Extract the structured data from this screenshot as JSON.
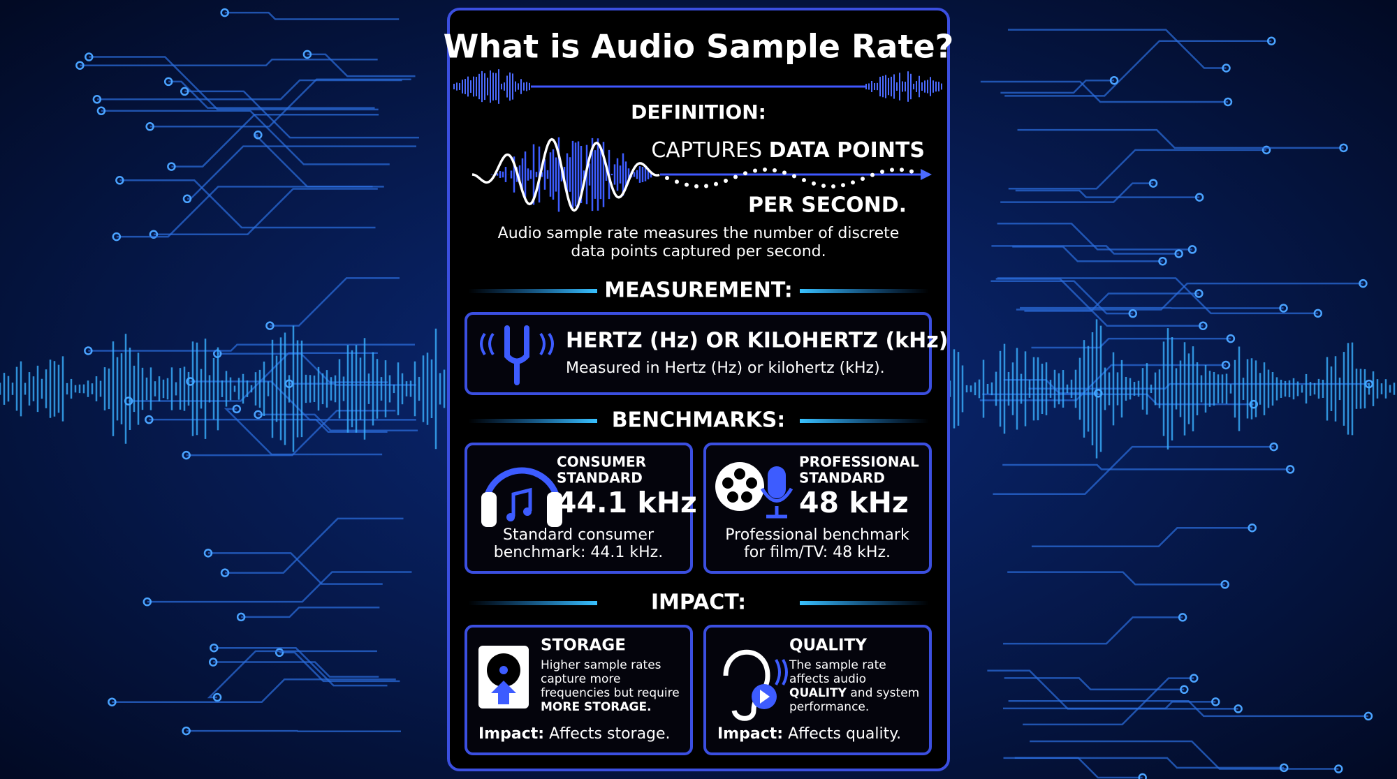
{
  "title": "What is Audio Sample Rate?",
  "definition": {
    "heading": "DEFINITION:",
    "caption_light": "CAPTURES",
    "caption_bold": "DATA POINTS",
    "caption_line2": "PER SECOND.",
    "description": [
      "Audio sample rate measures the number of discrete",
      "data points captured per second."
    ]
  },
  "measurement": {
    "heading": "MEASUREMENT:",
    "title": "HERTZ (Hz) OR KILOHERTZ (kHz)",
    "text": "Measured in Hertz (Hz) or kilohertz (kHz)."
  },
  "benchmarks": {
    "heading": "BENCHMARKS:",
    "cards": [
      {
        "label": [
          "CONSUMER",
          "STANDARD"
        ],
        "value": "44.1 kHz",
        "description": [
          "Standard consumer",
          "benchmark: 44.1 kHz."
        ]
      },
      {
        "label": [
          "PROFESSIONAL",
          "STANDARD"
        ],
        "value": "48 kHz",
        "description": [
          "Professional benchmark",
          "for film/TV: 48 kHz."
        ]
      }
    ]
  },
  "impact": {
    "heading": "IMPACT:",
    "cards": [
      {
        "title": "STORAGE",
        "body": [
          [
            {
              "text": "Higher sample rates",
              "bold": false
            }
          ],
          [
            {
              "text": "capture more",
              "bold": false
            }
          ],
          [
            {
              "text": "frequencies but require",
              "bold": false
            }
          ],
          [
            {
              "text": "MORE STORAGE.",
              "bold": true
            }
          ]
        ],
        "impact_label": "Impact:",
        "impact_text": "Affects storage."
      },
      {
        "title": "QUALITY",
        "body": [
          [
            {
              "text": "The sample rate",
              "bold": false
            }
          ],
          [
            {
              "text": "affects audio",
              "bold": false
            }
          ],
          [
            {
              "text": "QUALITY",
              "bold": true
            },
            {
              "text": " and system",
              "bold": false
            }
          ],
          [
            {
              "text": "performance.",
              "bold": false
            }
          ]
        ],
        "impact_label": "Impact:",
        "impact_text": "Affects quality."
      }
    ]
  }
}
